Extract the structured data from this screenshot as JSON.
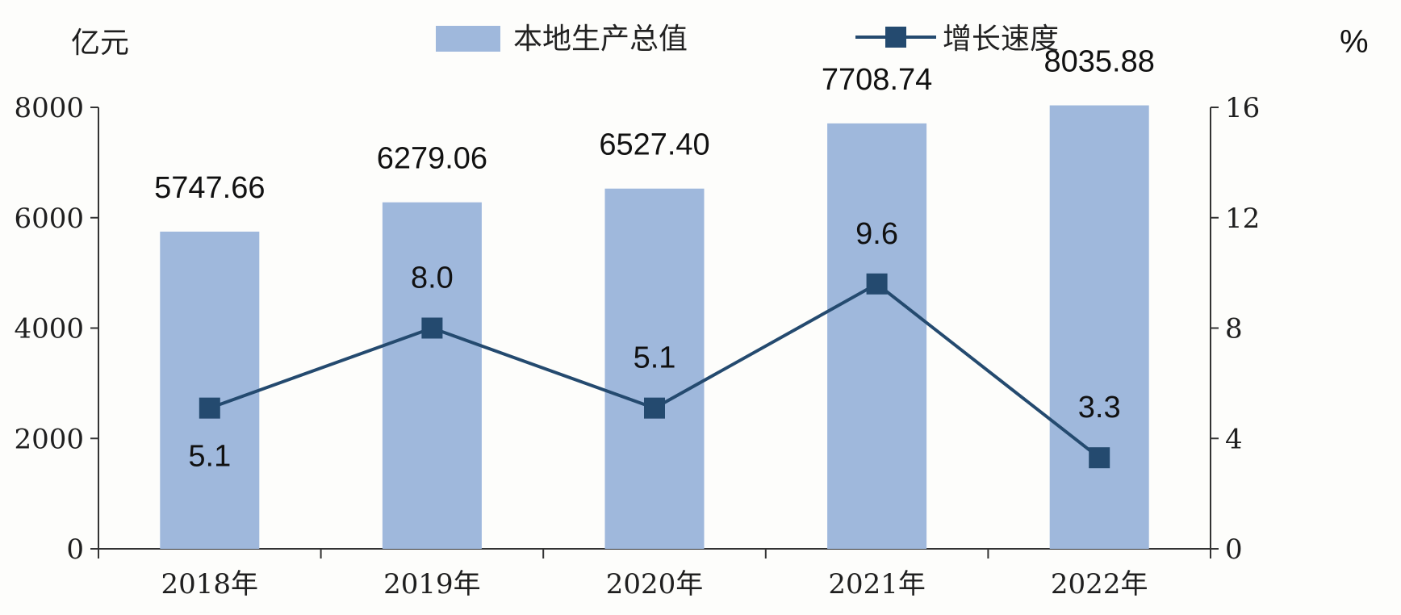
{
  "chart_data": {
    "type": "bar",
    "categories": [
      "2018年",
      "2019年",
      "2020年",
      "2021年",
      "2022年"
    ],
    "series": [
      {
        "name": "本地生产总值",
        "type": "bar",
        "axis": "left",
        "values": [
          5747.66,
          6279.06,
          6527.4,
          7708.74,
          8035.88
        ],
        "labels": [
          "5747.66",
          "6279.06",
          "6527.40",
          "7708.74",
          "8035.88"
        ],
        "color": "#9fb8dc"
      },
      {
        "name": "增长速度",
        "type": "line",
        "axis": "right",
        "values": [
          5.1,
          8.0,
          5.1,
          9.6,
          3.3
        ],
        "labels": [
          "5.1",
          "8.0",
          "5.1",
          "9.6",
          "3.3"
        ],
        "color": "#244a6f"
      }
    ],
    "left_axis": {
      "unit": "亿元",
      "ylim": [
        0,
        8000
      ],
      "ticks": [
        "0",
        "2000",
        "4000",
        "6000",
        "8000"
      ]
    },
    "right_axis": {
      "unit": "%",
      "ylim": [
        0,
        16
      ],
      "ticks": [
        "0",
        "4",
        "8",
        "12",
        "16"
      ]
    },
    "legend_position": "top-center",
    "grid": false
  }
}
